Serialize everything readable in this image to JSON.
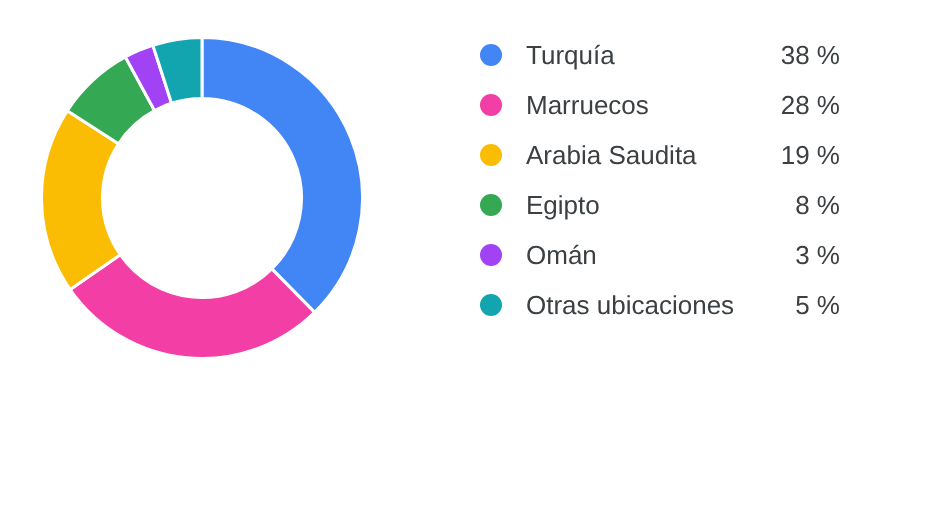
{
  "chart_data": {
    "type": "donut",
    "categories": [
      "Turquía",
      "Marruecos",
      "Arabia Saudita",
      "Egipto",
      "Omán",
      "Otras ubicaciones"
    ],
    "values": [
      38,
      28,
      19,
      8,
      3,
      5
    ],
    "value_labels": [
      "38 %",
      "28 %",
      "19 %",
      "8 %",
      "3 %",
      "5 %"
    ],
    "colors": [
      "#4285f4",
      "#f23ea5",
      "#fbbc04",
      "#34a853",
      "#a142f4",
      "#12a4af"
    ],
    "legend": "right"
  }
}
